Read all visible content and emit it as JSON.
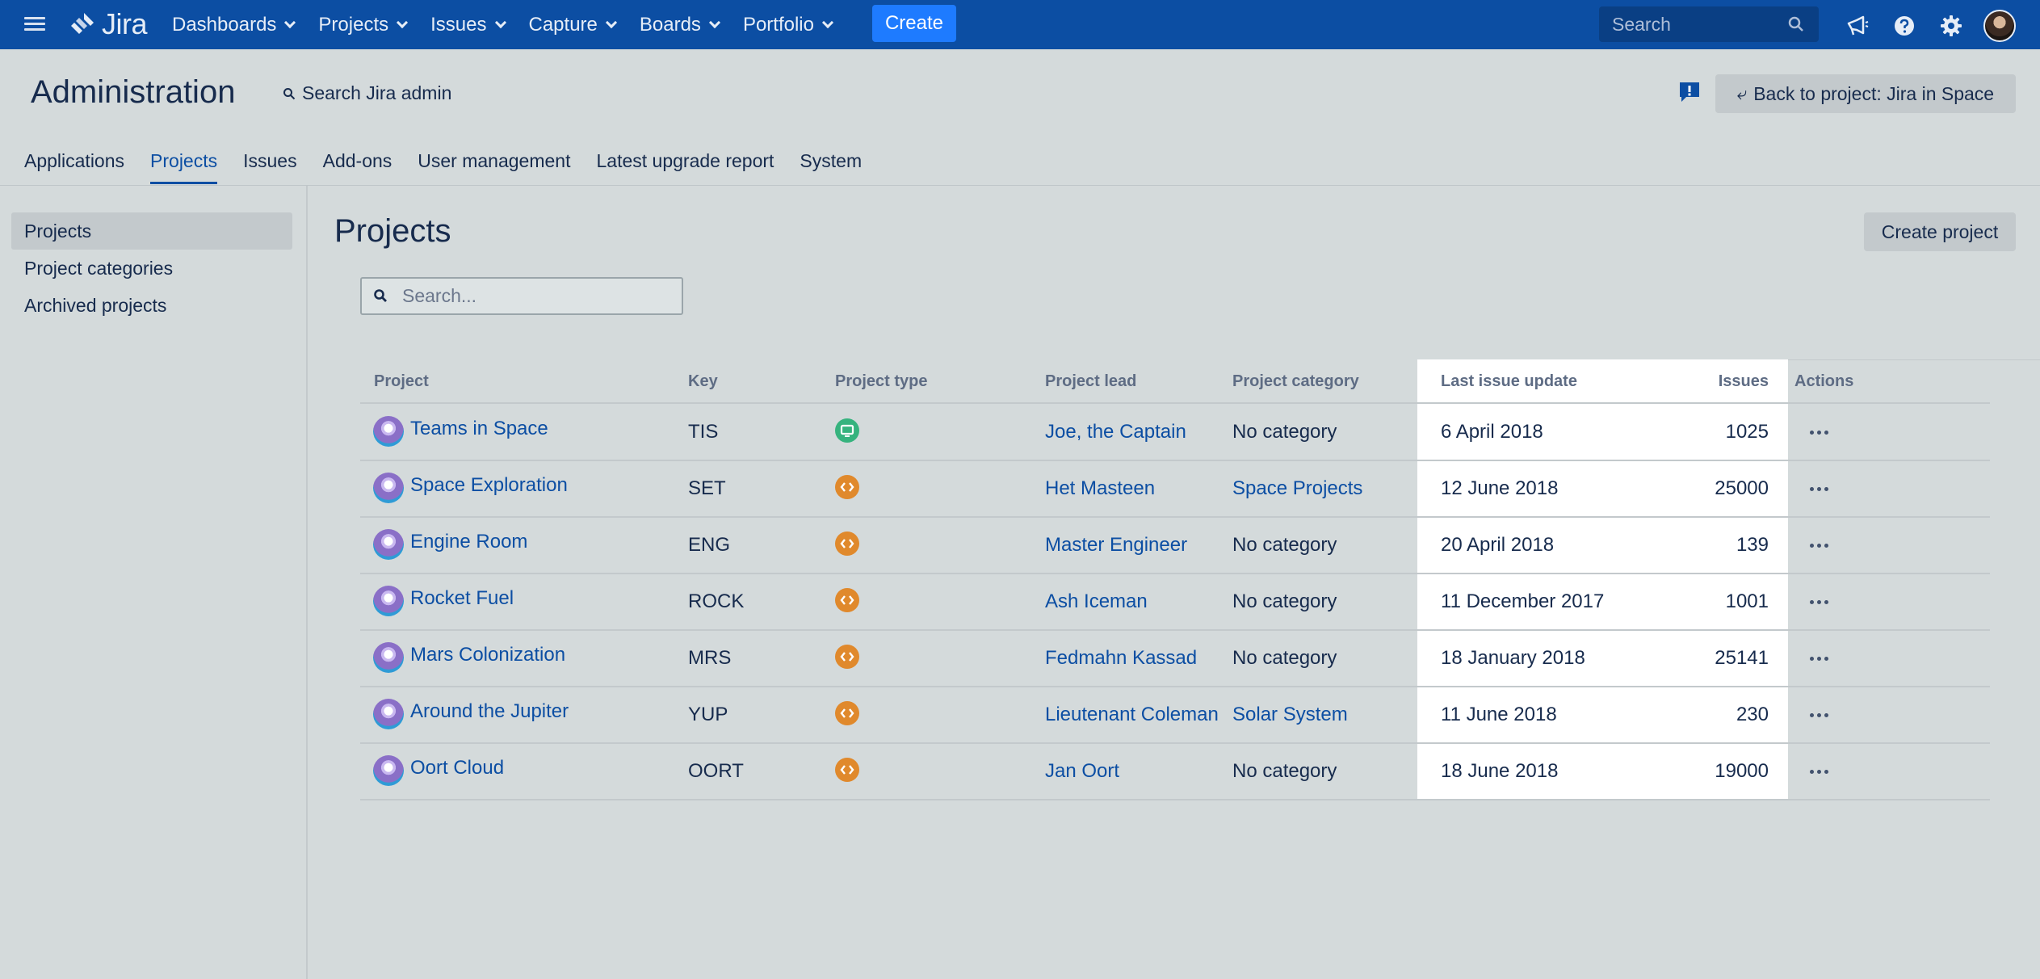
{
  "nav": {
    "logo_text": "Jira",
    "items": [
      "Dashboards",
      "Projects",
      "Issues",
      "Capture",
      "Boards",
      "Portfolio"
    ],
    "create_label": "Create",
    "search_placeholder": "Search",
    "icons": [
      "notifications-icon",
      "help-icon",
      "settings-icon",
      "avatar"
    ]
  },
  "admin": {
    "title": "Administration",
    "search_label": "Search Jira admin",
    "back_label": "Back to project: Jira in Space"
  },
  "tabs": [
    "Applications",
    "Projects",
    "Issues",
    "Add-ons",
    "User management",
    "Latest upgrade report",
    "System"
  ],
  "active_tab": "Projects",
  "sidebar": {
    "items": [
      "Projects",
      "Project categories",
      "Archived projects"
    ],
    "active": "Projects"
  },
  "main": {
    "title": "Projects",
    "create_label": "Create project",
    "search_placeholder": "Search..."
  },
  "table": {
    "columns": [
      "Project",
      "Key",
      "Project type",
      "Project lead",
      "Project category",
      "Last issue update",
      "Issues",
      "Actions"
    ],
    "rows": [
      {
        "name": "Teams in Space",
        "key": "TIS",
        "type": "service-desk",
        "lead": "Joe, the Captain",
        "category": "No category",
        "category_link": false,
        "updated": "6 April 2018",
        "issues": "1025"
      },
      {
        "name": "Space Exploration",
        "key": "SET",
        "type": "software",
        "lead": "Het Masteen",
        "category": "Space Projects",
        "category_link": true,
        "updated": "12 June 2018",
        "issues": "25000"
      },
      {
        "name": "Engine Room",
        "key": "ENG",
        "type": "software",
        "lead": "Master Engineer",
        "category": "No category",
        "category_link": false,
        "updated": "20 April 2018",
        "issues": "139"
      },
      {
        "name": "Rocket Fuel",
        "key": "ROCK",
        "type": "software",
        "lead": "Ash Iceman",
        "category": "No category",
        "category_link": false,
        "updated": "11 December 2017",
        "issues": "1001"
      },
      {
        "name": "Mars Colonization",
        "key": "MRS",
        "type": "software",
        "lead": "Fedmahn Kassad",
        "category": "No category",
        "category_link": false,
        "updated": "18 January 2018",
        "issues": "25141"
      },
      {
        "name": "Around the Jupiter",
        "key": "YUP",
        "type": "software",
        "lead": "Lieutenant Coleman",
        "category": "Solar System",
        "category_link": true,
        "updated": "11 June 2018",
        "issues": "230"
      },
      {
        "name": "Oort Cloud",
        "key": "OORT",
        "type": "software",
        "lead": "Jan Oort",
        "category": "No category",
        "category_link": false,
        "updated": "18 June 2018",
        "issues": "19000"
      }
    ]
  },
  "colors": {
    "nav_bg": "#0c4ea3",
    "create_bg": "#1e7bff",
    "link": "#0c4ea3",
    "service_desk": "#36b37e",
    "software": "#e0892c",
    "avatar": "#8a6fc7"
  }
}
